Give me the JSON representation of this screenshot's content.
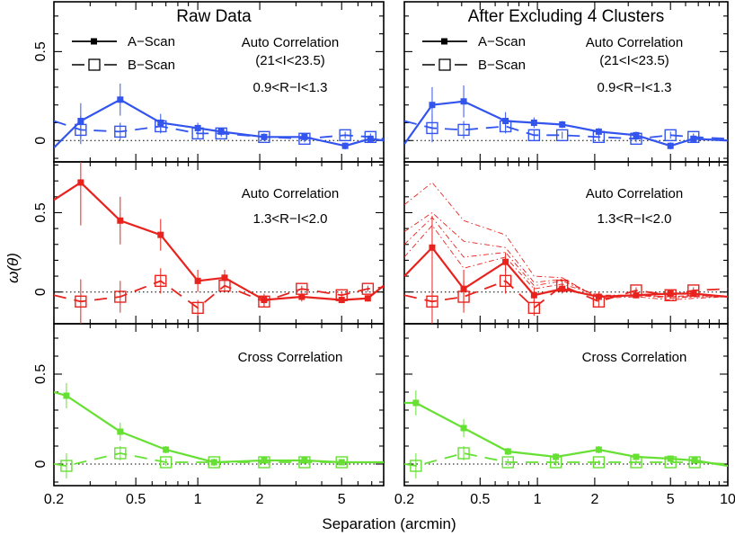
{
  "figure": {
    "xlabel": "Separation (arcmin)",
    "ylabel": "ω(θ)",
    "column_titles": [
      "Raw Data",
      "After Excluding 4 Clusters"
    ],
    "legend": {
      "a_label": "A−Scan",
      "b_label": "B−Scan"
    },
    "x_tick_labels": [
      "0.2",
      "0.5",
      "1",
      "2",
      "5",
      "10"
    ],
    "colors": {
      "top": "#3355ee",
      "middle": "#e8231e",
      "bottom": "#66e033"
    }
  },
  "chart_data": [
    {
      "type": "line",
      "panel": "top-left",
      "annotations": [
        "Auto Correlation",
        "(21<I<23.5)",
        "0.9<R−I<1.3"
      ],
      "xscale": "log",
      "xlim": [
        0.2,
        8.0
      ],
      "ylim": [
        -0.12,
        0.78
      ],
      "y_tick_labels": [
        "0",
        "0.5"
      ],
      "series": [
        {
          "name": "A−Scan",
          "x": [
            0.2,
            0.27,
            0.42,
            0.66,
            1.0,
            1.3,
            2.1,
            3.3,
            5.2,
            6.9,
            8.0
          ],
          "y": [
            -0.04,
            0.11,
            0.23,
            0.1,
            0.07,
            0.05,
            0.02,
            0.02,
            -0.03,
            0.01,
            0.0
          ],
          "err": [
            null,
            0.1,
            0.09,
            0.05,
            0.03,
            0.02,
            0.02,
            0.02,
            0.02,
            0.02,
            null
          ]
        },
        {
          "name": "B−Scan",
          "x": [
            0.2,
            0.27,
            0.42,
            0.66,
            1.0,
            1.3,
            2.1,
            3.3,
            5.2,
            6.9,
            8.0
          ],
          "y": [
            0.11,
            0.06,
            0.05,
            0.08,
            0.04,
            0.04,
            0.02,
            0.01,
            0.03,
            0.02,
            0.01
          ],
          "err": [
            null,
            0.08,
            0.05,
            0.04,
            0.03,
            0.02,
            0.02,
            0.02,
            0.02,
            0.02,
            null
          ]
        }
      ]
    },
    {
      "type": "line",
      "panel": "top-right",
      "annotations": [
        "Auto Correlation",
        "(21<I<23.5)",
        "0.9<R−I<1.3"
      ],
      "xscale": "log",
      "xlim": [
        0.2,
        10
      ],
      "ylim": [
        -0.12,
        0.78
      ],
      "y_tick_labels": [],
      "series": [
        {
          "name": "A−Scan",
          "x": [
            0.2,
            0.28,
            0.41,
            0.68,
            0.96,
            1.35,
            2.1,
            3.3,
            5.0,
            6.6,
            10.0
          ],
          "y": [
            -0.02,
            0.2,
            0.22,
            0.11,
            0.1,
            0.09,
            0.05,
            0.03,
            -0.03,
            0.01,
            0.0
          ],
          "err": [
            null,
            0.1,
            0.09,
            0.05,
            0.03,
            0.02,
            0.02,
            0.02,
            0.02,
            0.02,
            null
          ]
        },
        {
          "name": "B−Scan",
          "x": [
            0.2,
            0.28,
            0.41,
            0.68,
            0.96,
            1.35,
            2.1,
            3.3,
            5.0,
            6.6,
            10.0
          ],
          "y": [
            0.11,
            0.07,
            0.06,
            0.08,
            0.03,
            0.03,
            0.02,
            0.01,
            0.03,
            0.02,
            0.01
          ],
          "err": [
            null,
            0.08,
            0.05,
            0.04,
            0.03,
            0.02,
            0.02,
            0.02,
            0.02,
            0.02,
            null
          ]
        }
      ]
    },
    {
      "type": "line",
      "panel": "middle-left",
      "annotations": [
        "Auto Correlation",
        "1.3<R−I<2.0"
      ],
      "xscale": "log",
      "xlim": [
        0.2,
        8.0
      ],
      "ylim": [
        -0.2,
        0.82
      ],
      "y_tick_labels": [
        "0",
        "0.5"
      ],
      "series": [
        {
          "name": "A−Scan",
          "x": [
            0.2,
            0.27,
            0.42,
            0.66,
            1.0,
            1.35,
            2.1,
            3.2,
            5.0,
            6.7,
            8.0
          ],
          "y": [
            0.58,
            0.69,
            0.45,
            0.36,
            0.07,
            0.09,
            -0.05,
            -0.03,
            -0.05,
            -0.04,
            0.04
          ],
          "err": [
            null,
            0.27,
            0.15,
            0.1,
            0.07,
            0.05,
            0.04,
            0.03,
            0.02,
            0.02,
            null
          ]
        },
        {
          "name": "B−Scan",
          "x": [
            0.2,
            0.27,
            0.42,
            0.66,
            1.0,
            1.35,
            2.1,
            3.2,
            5.0,
            6.7,
            8.0
          ],
          "y": [
            -0.02,
            -0.06,
            -0.03,
            0.07,
            -0.1,
            0.04,
            -0.06,
            0.02,
            -0.02,
            0.02,
            0.03
          ],
          "err": [
            null,
            0.14,
            0.1,
            0.08,
            0.05,
            0.04,
            0.03,
            0.02,
            0.02,
            0.02,
            null
          ]
        }
      ]
    },
    {
      "type": "line",
      "panel": "middle-right",
      "annotations": [
        "Auto Correlation",
        "1.3<R−I<2.0"
      ],
      "xscale": "log",
      "xlim": [
        0.2,
        10
      ],
      "ylim": [
        -0.2,
        0.82
      ],
      "y_tick_labels": [],
      "series": [
        {
          "name": "A−Scan",
          "x": [
            0.2,
            0.28,
            0.41,
            0.68,
            0.96,
            1.35,
            2.1,
            3.3,
            5.0,
            6.6,
            10.0
          ],
          "y": [
            0.1,
            0.28,
            0.02,
            0.19,
            -0.02,
            0.02,
            -0.03,
            -0.02,
            -0.01,
            -0.01,
            -0.03
          ],
          "err": [
            null,
            0.2,
            0.12,
            0.06,
            0.05,
            0.03,
            0.03,
            0.02,
            0.02,
            0.02,
            null
          ]
        },
        {
          "name": "B−Scan",
          "x": [
            0.2,
            0.28,
            0.41,
            0.68,
            0.96,
            1.35,
            2.1,
            3.3,
            5.0,
            6.6,
            10.0
          ],
          "y": [
            -0.02,
            -0.06,
            -0.03,
            0.07,
            -0.1,
            0.04,
            -0.06,
            0.01,
            -0.02,
            0.01,
            0.02
          ],
          "err": [
            null,
            0.14,
            0.1,
            0.08,
            0.05,
            0.04,
            0.03,
            0.02,
            0.02,
            0.02,
            null
          ]
        }
      ],
      "individual_curves": [
        {
          "x": [
            0.2,
            0.28,
            0.41,
            0.68,
            0.96,
            1.35,
            2.1,
            3.3,
            5.0,
            6.6,
            10.0
          ],
          "y": [
            0.55,
            0.69,
            0.45,
            0.36,
            0.1,
            0.09,
            -0.04,
            -0.03,
            -0.05,
            -0.04,
            -0.03
          ]
        },
        {
          "x": [
            0.2,
            0.28,
            0.41,
            0.68,
            0.96,
            1.35,
            2.1,
            3.3,
            5.0,
            6.6,
            10.0
          ],
          "y": [
            0.38,
            0.5,
            0.32,
            0.28,
            0.06,
            0.08,
            -0.03,
            -0.02,
            -0.04,
            -0.03,
            -0.03
          ]
        },
        {
          "x": [
            0.2,
            0.28,
            0.41,
            0.68,
            0.96,
            1.35,
            2.1,
            3.3,
            5.0,
            6.6,
            10.0
          ],
          "y": [
            0.3,
            0.47,
            0.22,
            0.25,
            0.04,
            0.07,
            -0.03,
            -0.02,
            -0.03,
            -0.03,
            -0.03
          ]
        },
        {
          "x": [
            0.2,
            0.28,
            0.41,
            0.68,
            0.96,
            1.35,
            2.1,
            3.3,
            5.0,
            6.6,
            10.0
          ],
          "y": [
            0.22,
            0.42,
            0.15,
            0.22,
            0.02,
            0.05,
            -0.02,
            -0.02,
            -0.03,
            -0.02,
            -0.03
          ]
        }
      ]
    },
    {
      "type": "line",
      "panel": "bottom-left",
      "annotations": [
        "Cross Correlation"
      ],
      "xscale": "log",
      "xlim": [
        0.2,
        8.0
      ],
      "ylim": [
        -0.12,
        0.78
      ],
      "y_tick_labels": [
        "0",
        "0.5"
      ],
      "series": [
        {
          "name": "A−Scan",
          "x": [
            0.2,
            0.23,
            0.42,
            0.7,
            1.2,
            2.1,
            3.3,
            5.0,
            8.0
          ],
          "y": [
            0.4,
            0.38,
            0.18,
            0.08,
            0.01,
            0.02,
            0.02,
            0.01,
            0.01
          ],
          "err": [
            null,
            0.07,
            0.05,
            0.02,
            0.02,
            0.02,
            0.01,
            0.01,
            null
          ]
        },
        {
          "name": "B−Scan",
          "x": [
            0.2,
            0.23,
            0.42,
            0.7,
            1.2,
            2.1,
            3.3,
            5.0,
            8.0
          ],
          "y": [
            0.0,
            -0.01,
            0.06,
            0.01,
            0.01,
            0.01,
            0.01,
            0.01,
            0.01
          ],
          "err": [
            null,
            0.07,
            0.04,
            0.02,
            0.02,
            0.01,
            0.01,
            0.01,
            null
          ]
        }
      ]
    },
    {
      "type": "line",
      "panel": "bottom-right",
      "annotations": [
        "Cross Correlation"
      ],
      "xscale": "log",
      "xlim": [
        0.2,
        10
      ],
      "ylim": [
        -0.12,
        0.78
      ],
      "y_tick_labels": [],
      "series": [
        {
          "name": "A−Scan",
          "x": [
            0.2,
            0.23,
            0.41,
            0.7,
            1.25,
            2.1,
            3.3,
            5.0,
            6.7,
            10.0
          ],
          "y": [
            0.34,
            0.34,
            0.2,
            0.07,
            0.04,
            0.08,
            0.04,
            0.03,
            0.02,
            -0.01
          ],
          "err": [
            null,
            0.07,
            0.05,
            0.02,
            0.02,
            0.02,
            0.01,
            0.01,
            0.01,
            null
          ]
        },
        {
          "name": "B−Scan",
          "x": [
            0.2,
            0.23,
            0.41,
            0.7,
            1.25,
            2.1,
            3.3,
            5.0,
            6.7,
            10.0
          ],
          "y": [
            0.0,
            -0.01,
            0.06,
            0.01,
            0.01,
            0.01,
            0.01,
            0.01,
            0.01,
            0.0
          ],
          "err": [
            null,
            0.07,
            0.04,
            0.02,
            0.02,
            0.01,
            0.01,
            0.01,
            0.01,
            null
          ]
        }
      ]
    }
  ]
}
